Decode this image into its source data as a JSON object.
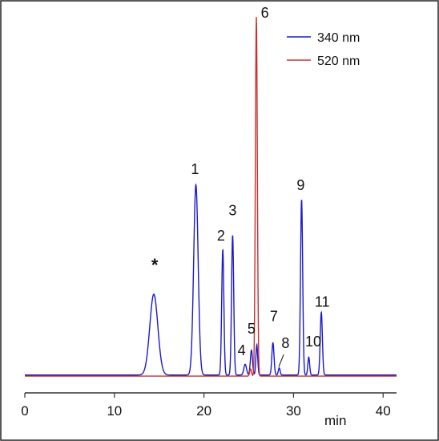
{
  "chart_data": {
    "type": "line",
    "title": "",
    "xlabel": "min",
    "ylabel": "",
    "xlim": [
      0,
      41.5
    ],
    "ylim": [
      0,
      1.0
    ],
    "x_ticks": [
      "0",
      "10",
      "20",
      "30",
      "40"
    ],
    "y_axis_shown": false,
    "grid": false,
    "legend": {
      "placement": "top-right"
    },
    "series": [
      {
        "name": "340 nm",
        "color": "#1a1acc",
        "baseline": 0.005,
        "peaks": [
          {
            "label": "*",
            "x": 14.4,
            "height": 0.225,
            "width": 0.45
          },
          {
            "label": "1",
            "x": 19.1,
            "height": 0.53,
            "width": 0.25
          },
          {
            "label": "2",
            "x": 22.1,
            "height": 0.35,
            "width": 0.12
          },
          {
            "label": "3",
            "x": 23.2,
            "height": 0.39,
            "width": 0.12
          },
          {
            "label": "4",
            "x": 24.6,
            "height": 0.03,
            "width": 0.15
          },
          {
            "label": "5",
            "x": 25.3,
            "height": 0.07,
            "width": 0.12
          },
          {
            "label": "6",
            "x": 25.9,
            "height": 0.085,
            "width": 0.1
          },
          {
            "label": "7",
            "x": 27.7,
            "height": 0.09,
            "width": 0.12
          },
          {
            "label": "8",
            "x": 28.4,
            "height": 0.02,
            "width": 0.1
          },
          {
            "label": "9",
            "x": 30.9,
            "height": 0.49,
            "width": 0.12
          },
          {
            "label": "10",
            "x": 31.7,
            "height": 0.05,
            "width": 0.1
          },
          {
            "label": "11",
            "x": 33.1,
            "height": 0.175,
            "width": 0.12
          }
        ]
      },
      {
        "name": "520 nm",
        "color": "#c83030",
        "baseline": 0.002,
        "peaks": [
          {
            "label": "6",
            "x": 25.85,
            "height": 1.0,
            "width": 0.11
          },
          {
            "label": "5",
            "x": 25.2,
            "height": 0.02,
            "width": 0.1
          }
        ]
      }
    ],
    "peak_labels": [
      {
        "text": "*",
        "x": 14.5,
        "y": 0.295
      },
      {
        "text": "1",
        "x": 19.0,
        "y": 0.565
      },
      {
        "text": "2",
        "x": 21.9,
        "y": 0.38
      },
      {
        "text": "3",
        "x": 23.2,
        "y": 0.45
      },
      {
        "text": "4",
        "x": 24.2,
        "y": 0.06
      },
      {
        "text": "5",
        "x": 25.3,
        "y": 0.12
      },
      {
        "text": "6",
        "x": 26.8,
        "y": 1.0
      },
      {
        "text": "7",
        "x": 27.8,
        "y": 0.155
      },
      {
        "text": "8",
        "x": 29.1,
        "y": 0.08
      },
      {
        "text": "9",
        "x": 30.8,
        "y": 0.52
      },
      {
        "text": "10",
        "x": 32.2,
        "y": 0.085
      },
      {
        "text": "11",
        "x": 33.2,
        "y": 0.195
      }
    ]
  }
}
